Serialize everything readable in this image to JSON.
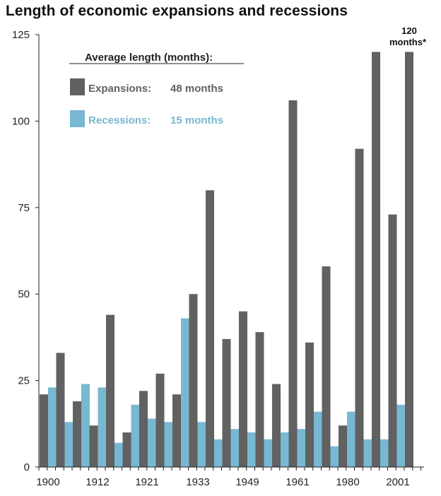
{
  "chart_data": {
    "type": "bar",
    "title": "Length of economic expansions and recessions",
    "xlabel": "",
    "ylabel": "",
    "ylim": [
      0,
      125
    ],
    "yticks": [
      0,
      25,
      50,
      75,
      100,
      125
    ],
    "xtick_labels": [
      "1900",
      "1912",
      "1921",
      "1933",
      "1949",
      "1961",
      "1980",
      "2001"
    ],
    "bar_pairs": [
      {
        "expansion": 21,
        "recession": 23
      },
      {
        "expansion": 33,
        "recession": 13
      },
      {
        "expansion": 19,
        "recession": 24
      },
      {
        "expansion": 12,
        "recession": 23
      },
      {
        "expansion": 44,
        "recession": 7
      },
      {
        "expansion": 10,
        "recession": 18
      },
      {
        "expansion": 22,
        "recession": 14
      },
      {
        "expansion": 27,
        "recession": 13
      },
      {
        "expansion": 21,
        "recession": 43
      },
      {
        "expansion": 50,
        "recession": 13
      },
      {
        "expansion": 80,
        "recession": 8
      },
      {
        "expansion": 37,
        "recession": 11
      },
      {
        "expansion": 45,
        "recession": 10
      },
      {
        "expansion": 39,
        "recession": 8
      },
      {
        "expansion": 24,
        "recession": 10
      },
      {
        "expansion": 106,
        "recession": 11
      },
      {
        "expansion": 36,
        "recession": 16
      },
      {
        "expansion": 58,
        "recession": 6
      },
      {
        "expansion": 12,
        "recession": 16
      },
      {
        "expansion": 92,
        "recession": 8
      },
      {
        "expansion": 120,
        "recession": 8
      },
      {
        "expansion": 73,
        "recession": 18
      },
      {
        "expansion": 120,
        "recession": null
      }
    ],
    "series_colors": {
      "expansion": "#616161",
      "recession": "#78b8d2"
    },
    "legend": {
      "title": "Average length (months):",
      "items": [
        {
          "label": "Expansions:",
          "value": "48 months",
          "color": "#616161"
        },
        {
          "label": "Recessions:",
          "value": "15 months",
          "color": "#78b8d2"
        }
      ],
      "placement": "top-left"
    },
    "annotation": {
      "line1": "120",
      "line2": "months*"
    },
    "grid": false
  }
}
